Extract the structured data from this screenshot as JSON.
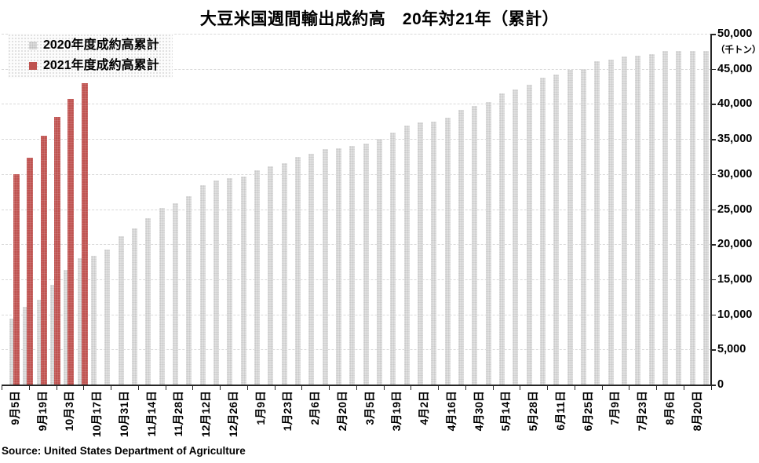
{
  "header": {
    "title": "大豆米国週間輸出成約高　20年対21年（累計）"
  },
  "legend": {
    "items": [
      {
        "label": "2020年度成約高累計",
        "color": "#dcdcdc"
      },
      {
        "label": "2021年度成約高累計",
        "color": "#bf5350"
      }
    ]
  },
  "y_axis": {
    "unit": "（千トン）",
    "min": 0,
    "max": 50000,
    "step": 5000,
    "tick_labels": [
      "0",
      "5,000",
      "10,000",
      "15,000",
      "20,000",
      "25,000",
      "30,000",
      "35,000",
      "40,000",
      "45,000",
      "50,000"
    ]
  },
  "x_axis": {
    "tick_labels": [
      "9月5日",
      "9月19日",
      "10月3日",
      "10月17日",
      "10月31日",
      "11月14日",
      "11月28日",
      "12月12日",
      "12月26日",
      "1月9日",
      "1月23日",
      "2月6日",
      "2月20日",
      "3月5日",
      "3月19日",
      "4月2日",
      "4月16日",
      "4月30日",
      "5月14日",
      "5月28日",
      "6月11日",
      "6月25日",
      "7月9日",
      "7月23日",
      "8月6日",
      "8月20日"
    ],
    "label_every_n_bars": 2
  },
  "chart_data": {
    "type": "bar",
    "title": "大豆米国週間輸出成約高　20年対21年（累計）",
    "xlabel": "",
    "ylabel": "（千トン）",
    "ylim": [
      0,
      50000
    ],
    "grid": true,
    "legend_position": "top-left",
    "categories_note": "52 weekly cumulative values; x tick labels shown under every other bar",
    "x_tick_labels": [
      "9月5日",
      "9月19日",
      "10月3日",
      "10月17日",
      "10月31日",
      "11月14日",
      "11月28日",
      "12月12日",
      "12月26日",
      "1月9日",
      "1月23日",
      "2月6日",
      "2月20日",
      "3月5日",
      "3月19日",
      "4月2日",
      "4月16日",
      "4月30日",
      "5月14日",
      "5月28日",
      "6月11日",
      "6月25日",
      "7月9日",
      "7月23日",
      "8月6日",
      "8月20日"
    ],
    "series": [
      {
        "name": "2020年度成約高累計",
        "color": "#dcdcdc",
        "values": [
          9400,
          11100,
          12100,
          14200,
          16300,
          18000,
          18400,
          19300,
          21100,
          22300,
          23700,
          25200,
          25900,
          26900,
          28400,
          29100,
          29400,
          29700,
          30500,
          31100,
          31600,
          32400,
          32900,
          33600,
          33700,
          34000,
          34400,
          35000,
          35900,
          36900,
          37400,
          37500,
          38000,
          39100,
          39700,
          40300,
          41500,
          42100,
          42700,
          43700,
          44200,
          44900,
          45000,
          46100,
          46300,
          46800,
          46900,
          47100,
          47600,
          47600,
          47600,
          47600
        ]
      },
      {
        "name": "2021年度成約高累計",
        "color": "#bf5350",
        "values": [
          30000,
          32300,
          35500,
          38100,
          40700,
          43000
        ]
      }
    ]
  },
  "footer": {
    "source": "Source: United States Department of Agriculture"
  }
}
